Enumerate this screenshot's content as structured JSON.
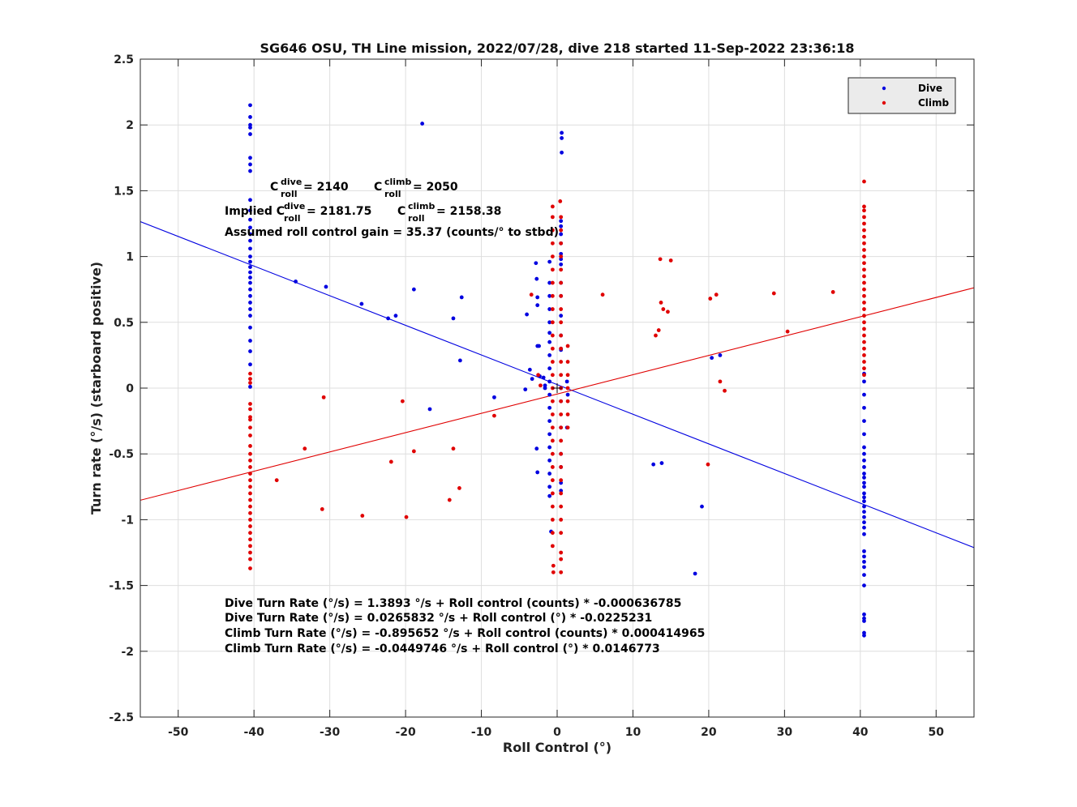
{
  "chart_data": {
    "type": "scatter",
    "title": "SG646 OSU, TH Line mission, 2022/07/28, dive 218 started 11-Sep-2022 23:36:18",
    "xlabel": "Roll Control (°)",
    "ylabel": "Turn rate (°/s) (starboard positive)",
    "xlim": [
      -55,
      55
    ],
    "ylim": [
      -2.5,
      2.5
    ],
    "xticks": [
      "-50",
      "-40",
      "-30",
      "-20",
      "-10",
      "0",
      "10",
      "20",
      "30",
      "40",
      "50"
    ],
    "yticks": [
      "2.5",
      "2",
      "1.5",
      "1",
      "0.5",
      "0",
      "-0.5",
      "-1",
      "-1.5",
      "-2",
      "-2.5"
    ],
    "grid": true,
    "legend_position": "top-right",
    "colors": {
      "dive": "#0000e0",
      "climb": "#e00000"
    },
    "series": [
      {
        "name": "Dive",
        "fit": {
          "intercept": 0.0265832,
          "slope": -0.0225231
        },
        "points": [
          [
            -40.5,
            2.15
          ],
          [
            -40.5,
            2.06
          ],
          [
            -40.5,
            2.0
          ],
          [
            -40.5,
            1.98
          ],
          [
            -40.5,
            1.93
          ],
          [
            -40.5,
            1.75
          ],
          [
            -40.5,
            1.7
          ],
          [
            -40.5,
            1.65
          ],
          [
            -40.5,
            1.43
          ],
          [
            -40.5,
            1.35
          ],
          [
            -40.5,
            1.28
          ],
          [
            -40.5,
            1.22
          ],
          [
            -40.5,
            1.17
          ],
          [
            -40.5,
            1.12
          ],
          [
            -40.5,
            1.06
          ],
          [
            -40.5,
            1.0
          ],
          [
            -40.5,
            0.96
          ],
          [
            -40.5,
            0.92
          ],
          [
            -40.5,
            0.88
          ],
          [
            -40.5,
            0.84
          ],
          [
            -40.5,
            0.8
          ],
          [
            -40.5,
            0.75
          ],
          [
            -40.5,
            0.7
          ],
          [
            -40.5,
            0.65
          ],
          [
            -40.5,
            0.6
          ],
          [
            -40.5,
            0.55
          ],
          [
            -40.5,
            0.46
          ],
          [
            -40.5,
            0.36
          ],
          [
            -40.5,
            0.28
          ],
          [
            -40.5,
            0.18
          ],
          [
            -40.5,
            0.01
          ],
          [
            -34.5,
            0.81
          ],
          [
            -30.5,
            0.77
          ],
          [
            -25.8,
            0.64
          ],
          [
            -22.3,
            0.53
          ],
          [
            -21.3,
            0.55
          ],
          [
            -18.9,
            0.75
          ],
          [
            -17.8,
            2.01
          ],
          [
            -16.8,
            -0.16
          ],
          [
            -13.7,
            0.53
          ],
          [
            -12.6,
            0.69
          ],
          [
            -12.8,
            0.21
          ],
          [
            -8.3,
            -0.07
          ],
          [
            -4.2,
            -0.01
          ],
          [
            -4.0,
            0.56
          ],
          [
            -3.6,
            0.14
          ],
          [
            -3.3,
            0.07
          ],
          [
            -2.8,
            0.95
          ],
          [
            -2.7,
            0.83
          ],
          [
            -2.6,
            0.69
          ],
          [
            -2.6,
            0.63
          ],
          [
            -2.6,
            0.32
          ],
          [
            -2.4,
            0.32
          ],
          [
            -2.3,
            0.09
          ],
          [
            -2.7,
            -0.46
          ],
          [
            -2.6,
            -0.64
          ],
          [
            -1.8,
            0.08
          ],
          [
            -1.6,
            0.02
          ],
          [
            -1.6,
            0.0
          ],
          [
            -1.0,
            0.96
          ],
          [
            -1.0,
            0.8
          ],
          [
            -1.0,
            0.7
          ],
          [
            -1.0,
            0.6
          ],
          [
            -1.0,
            0.5
          ],
          [
            -1.0,
            0.42
          ],
          [
            -1.0,
            0.35
          ],
          [
            -1.0,
            0.25
          ],
          [
            -1.0,
            0.15
          ],
          [
            -1.0,
            0.05
          ],
          [
            -1.0,
            -0.05
          ],
          [
            -1.0,
            -0.15
          ],
          [
            -1.0,
            -0.25
          ],
          [
            -1.0,
            -0.35
          ],
          [
            -1.0,
            -0.45
          ],
          [
            -1.0,
            -0.55
          ],
          [
            -1.0,
            -0.65
          ],
          [
            -1.0,
            -0.75
          ],
          [
            -1.0,
            -0.82
          ],
          [
            -0.8,
            -1.09
          ],
          [
            0.6,
            1.94
          ],
          [
            0.6,
            1.9
          ],
          [
            0.6,
            1.79
          ],
          [
            0.5,
            1.27
          ],
          [
            0.5,
            1.23
          ],
          [
            0.5,
            1.17
          ],
          [
            0.5,
            1.1
          ],
          [
            0.5,
            1.02
          ],
          [
            0.5,
            0.98
          ],
          [
            0.5,
            0.94
          ],
          [
            0.5,
            0.8
          ],
          [
            0.5,
            0.7
          ],
          [
            0.5,
            0.55
          ],
          [
            0.5,
            0.4
          ],
          [
            0.5,
            0.3
          ],
          [
            0.5,
            0.29
          ],
          [
            0.5,
            0.0
          ],
          [
            0.5,
            -0.1
          ],
          [
            0.5,
            -0.3
          ],
          [
            0.5,
            -0.5
          ],
          [
            0.5,
            -0.6
          ],
          [
            0.5,
            -0.72
          ],
          [
            0.5,
            -0.78
          ],
          [
            1.3,
            -0.3
          ],
          [
            1.3,
            0.05
          ],
          [
            1.4,
            -0.05
          ],
          [
            12.7,
            -0.58
          ],
          [
            13.8,
            -0.57
          ],
          [
            18.2,
            -1.41
          ],
          [
            19.1,
            -0.9
          ],
          [
            20.4,
            0.23
          ],
          [
            21.5,
            0.25
          ],
          [
            40.5,
            0.11
          ],
          [
            40.5,
            0.05
          ],
          [
            40.5,
            -0.05
          ],
          [
            40.5,
            -0.15
          ],
          [
            40.5,
            -0.25
          ],
          [
            40.5,
            -0.35
          ],
          [
            40.5,
            -0.45
          ],
          [
            40.5,
            -0.5
          ],
          [
            40.5,
            -0.55
          ],
          [
            40.5,
            -0.6
          ],
          [
            40.5,
            -0.65
          ],
          [
            40.5,
            -0.68
          ],
          [
            40.5,
            -0.72
          ],
          [
            40.5,
            -0.75
          ],
          [
            40.5,
            -0.8
          ],
          [
            40.5,
            -0.83
          ],
          [
            40.5,
            -0.86
          ],
          [
            40.5,
            -0.9
          ],
          [
            40.5,
            -0.94
          ],
          [
            40.5,
            -0.98
          ],
          [
            40.5,
            -1.02
          ],
          [
            40.5,
            -1.06
          ],
          [
            40.5,
            -1.11
          ],
          [
            40.5,
            -1.24
          ],
          [
            40.5,
            -1.28
          ],
          [
            40.5,
            -1.32
          ],
          [
            40.5,
            -1.36
          ],
          [
            40.5,
            -1.42
          ],
          [
            40.5,
            -1.5
          ],
          [
            40.5,
            -1.72
          ],
          [
            40.5,
            -1.75
          ],
          [
            40.5,
            -1.77
          ],
          [
            40.5,
            -1.86
          ],
          [
            40.5,
            -1.88
          ]
        ]
      },
      {
        "name": "Climb",
        "fit": {
          "intercept": -0.0449746,
          "slope": 0.0146773
        },
        "points": [
          [
            -40.5,
            0.11
          ],
          [
            -40.5,
            0.07
          ],
          [
            -40.5,
            0.04
          ],
          [
            -40.5,
            -0.12
          ],
          [
            -40.5,
            -0.16
          ],
          [
            -40.5,
            -0.22
          ],
          [
            -40.5,
            -0.24
          ],
          [
            -40.5,
            -0.3
          ],
          [
            -40.5,
            -0.36
          ],
          [
            -40.5,
            -0.44
          ],
          [
            -40.5,
            -0.5
          ],
          [
            -40.5,
            -0.55
          ],
          [
            -40.5,
            -0.6
          ],
          [
            -40.5,
            -0.65
          ],
          [
            -40.5,
            -0.7
          ],
          [
            -40.5,
            -0.75
          ],
          [
            -40.5,
            -0.8
          ],
          [
            -40.5,
            -0.85
          ],
          [
            -40.5,
            -0.9
          ],
          [
            -40.5,
            -0.95
          ],
          [
            -40.5,
            -1.0
          ],
          [
            -40.5,
            -1.05
          ],
          [
            -40.5,
            -1.1
          ],
          [
            -40.5,
            -1.15
          ],
          [
            -40.5,
            -1.2
          ],
          [
            -40.5,
            -1.25
          ],
          [
            -40.5,
            -1.3
          ],
          [
            -40.5,
            -1.37
          ],
          [
            -37.0,
            -0.7
          ],
          [
            -33.3,
            -0.46
          ],
          [
            -31.0,
            -0.92
          ],
          [
            -30.8,
            -0.07
          ],
          [
            -25.7,
            -0.97
          ],
          [
            -21.9,
            -0.56
          ],
          [
            -20.4,
            -0.1
          ],
          [
            -19.9,
            -0.98
          ],
          [
            -18.9,
            -0.48
          ],
          [
            -14.2,
            -0.85
          ],
          [
            -13.7,
            -0.46
          ],
          [
            -12.9,
            -0.76
          ],
          [
            -8.3,
            -0.21
          ],
          [
            -3.4,
            0.71
          ],
          [
            -2.5,
            0.1
          ],
          [
            -2.2,
            0.02
          ],
          [
            -0.6,
            1.38
          ],
          [
            -0.6,
            1.3
          ],
          [
            -0.6,
            1.2
          ],
          [
            -0.6,
            1.1
          ],
          [
            -0.6,
            1.0
          ],
          [
            -0.6,
            0.9
          ],
          [
            -0.6,
            0.8
          ],
          [
            -0.6,
            0.7
          ],
          [
            -0.6,
            0.6
          ],
          [
            -0.6,
            0.5
          ],
          [
            -0.6,
            0.4
          ],
          [
            -0.6,
            0.3
          ],
          [
            -0.6,
            0.2
          ],
          [
            -0.6,
            0.1
          ],
          [
            -0.6,
            0.0
          ],
          [
            -0.6,
            -0.1
          ],
          [
            -0.6,
            -0.2
          ],
          [
            -0.6,
            -0.3
          ],
          [
            -0.6,
            -0.4
          ],
          [
            -0.6,
            -0.5
          ],
          [
            -0.6,
            -0.6
          ],
          [
            -0.6,
            -0.7
          ],
          [
            -0.6,
            -0.8
          ],
          [
            -0.6,
            -0.9
          ],
          [
            -0.6,
            -1.0
          ],
          [
            -0.6,
            -1.1
          ],
          [
            -0.6,
            -1.2
          ],
          [
            -0.5,
            -1.35
          ],
          [
            -0.5,
            -1.4
          ],
          [
            0.4,
            1.42
          ],
          [
            0.5,
            1.3
          ],
          [
            0.5,
            1.2
          ],
          [
            0.5,
            1.1
          ],
          [
            0.5,
            1.0
          ],
          [
            0.5,
            0.9
          ],
          [
            0.5,
            0.8
          ],
          [
            0.5,
            0.7
          ],
          [
            0.5,
            0.6
          ],
          [
            0.5,
            0.5
          ],
          [
            0.5,
            0.4
          ],
          [
            0.5,
            0.3
          ],
          [
            0.5,
            0.2
          ],
          [
            0.5,
            0.1
          ],
          [
            0.5,
            0.0
          ],
          [
            0.5,
            -0.1
          ],
          [
            0.5,
            -0.2
          ],
          [
            0.5,
            -0.3
          ],
          [
            0.5,
            -0.4
          ],
          [
            0.5,
            -0.5
          ],
          [
            0.5,
            -0.6
          ],
          [
            0.5,
            -0.7
          ],
          [
            0.5,
            -0.8
          ],
          [
            0.5,
            -0.9
          ],
          [
            0.5,
            -1.0
          ],
          [
            0.5,
            -1.1
          ],
          [
            0.5,
            -1.25
          ],
          [
            0.5,
            -1.3
          ],
          [
            0.5,
            -1.4
          ],
          [
            1.4,
            0.32
          ],
          [
            1.4,
            0.2
          ],
          [
            1.4,
            0.1
          ],
          [
            1.4,
            0.0
          ],
          [
            1.4,
            -0.1
          ],
          [
            1.4,
            -0.2
          ],
          [
            1.4,
            -0.3
          ],
          [
            6.0,
            0.71
          ],
          [
            13.0,
            0.4
          ],
          [
            13.4,
            0.44
          ],
          [
            13.6,
            0.98
          ],
          [
            13.7,
            0.65
          ],
          [
            14.0,
            0.6
          ],
          [
            14.6,
            0.58
          ],
          [
            15.0,
            0.97
          ],
          [
            19.9,
            -0.58
          ],
          [
            20.2,
            0.68
          ],
          [
            21.0,
            0.71
          ],
          [
            21.5,
            0.05
          ],
          [
            22.1,
            -0.02
          ],
          [
            28.6,
            0.72
          ],
          [
            30.4,
            0.43
          ],
          [
            36.4,
            0.73
          ],
          [
            40.5,
            1.57
          ],
          [
            40.5,
            1.38
          ],
          [
            40.5,
            1.35
          ],
          [
            40.5,
            1.3
          ],
          [
            40.5,
            1.25
          ],
          [
            40.5,
            1.2
          ],
          [
            40.5,
            1.15
          ],
          [
            40.5,
            1.1
          ],
          [
            40.5,
            1.05
          ],
          [
            40.5,
            1.0
          ],
          [
            40.5,
            0.95
          ],
          [
            40.5,
            0.9
          ],
          [
            40.5,
            0.85
          ],
          [
            40.5,
            0.8
          ],
          [
            40.5,
            0.75
          ],
          [
            40.5,
            0.7
          ],
          [
            40.5,
            0.65
          ],
          [
            40.5,
            0.6
          ],
          [
            40.5,
            0.55
          ],
          [
            40.5,
            0.5
          ],
          [
            40.5,
            0.45
          ],
          [
            40.5,
            0.4
          ],
          [
            40.5,
            0.35
          ],
          [
            40.5,
            0.3
          ],
          [
            40.5,
            0.25
          ],
          [
            40.5,
            0.2
          ],
          [
            40.5,
            0.15
          ],
          [
            40.5,
            0.1
          ]
        ]
      }
    ]
  },
  "annotations": {
    "c_dive_prefix": "C",
    "c_dive_sup": "dive",
    "c_dive_sub": "roll",
    "c_dive_value": " = 2140",
    "c_climb_prefix": "C",
    "c_climb_sup": "climb",
    "c_climb_sub": "roll",
    "c_climb_value": " = 2050",
    "implied_prefix": "Implied C",
    "implied_dive_sup": "dive",
    "implied_dive_sub": "roll",
    "implied_dive_value": " = 2181.75",
    "implied_climb_prefix": "C",
    "implied_climb_sup": "climb",
    "implied_climb_sub": "roll",
    "implied_climb_value": " = 2158.38",
    "gain": "Assumed roll control gain = 35.37 (counts/° to stbd)",
    "equations": [
      "Dive Turn Rate (°/s) = 1.3893 °/s + Roll control (counts) * -0.000636785",
      "Dive Turn Rate (°/s) = 0.0265832 °/s + Roll control (°) * -0.0225231",
      "Climb Turn Rate (°/s) = -0.895652 °/s + Roll control (counts) * 0.000414965",
      "Climb Turn Rate (°/s) = -0.0449746 °/s + Roll control (°) * 0.0146773"
    ]
  }
}
